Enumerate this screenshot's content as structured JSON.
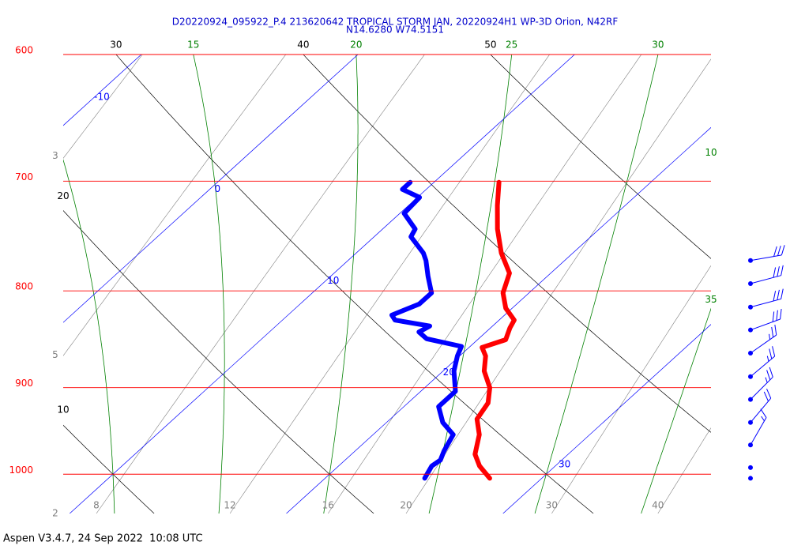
{
  "chart_data": {
    "type": "skewt",
    "title": "D20220924_095922_P.4 213620642 TROPICAL STORM JAN, 20220924H1 WP-3D Orion, N42RF",
    "subtitle": "N14.6280 W74.5151",
    "caption": "Aspen V3.4.7, 24 Sep 2022  10:08 UTC",
    "ylim": [
      1049,
      600
    ],
    "ylog": true,
    "xlim": [
      9.7,
      39.6
    ],
    "isobars": [
      600,
      700,
      800,
      900,
      1000
    ],
    "isotherms": [
      -10,
      0,
      10,
      20,
      30
    ],
    "dry_adiabats": [
      10,
      20,
      30,
      40,
      50
    ],
    "moist_adiabats": [
      10,
      15,
      20,
      25,
      30,
      35
    ],
    "mixing_ratios": [
      2,
      3,
      5,
      8,
      12,
      16,
      20,
      30,
      40
    ],
    "colors": {
      "title": "#0000cc",
      "isobars": "#ff0000",
      "isotherms": "#0000ff",
      "dry_adiabats": "#000000",
      "moist_adiabats": "#008000",
      "mixing_ratios": "#808080"
    },
    "series": [
      {
        "color": "#ff0000",
        "pressure": [
          1005,
          990,
          976,
          953,
          935,
          917,
          900,
          882,
          866,
          857,
          849,
          837,
          829,
          817,
          802,
          783,
          764,
          742,
          721,
          701
        ],
        "values": [
          27.6,
          26.5,
          25.7,
          24.9,
          24.0,
          23.7,
          23.0,
          21.9,
          21.2,
          20.6,
          21.3,
          20.9,
          20.7,
          19.7,
          18.8,
          18.1,
          16.7,
          15.3,
          14.1,
          13.0
        ]
      },
      {
        "color": "#0000ff",
        "pressure": [
          1005,
          990,
          983,
          972,
          953,
          939,
          921,
          904,
          882,
          866,
          856,
          848,
          841,
          835,
          829,
          824,
          813,
          802,
          786,
          771,
          764,
          749,
          742,
          728,
          714,
          707,
          701
        ],
        "values": [
          24.6,
          24.3,
          24.4,
          24.1,
          23.7,
          22.6,
          21.6,
          21.6,
          20.5,
          19.9,
          19.6,
          17.6,
          16.9,
          17.1,
          15.2,
          14.8,
          15.5,
          15.5,
          14.5,
          13.6,
          13.1,
          11.7,
          11.5,
          10.2,
          10.1,
          8.9,
          8.9
        ]
      }
    ],
    "wind": {
      "color": "#0000ff",
      "pressure": [
        771,
        793,
        816,
        839,
        863,
        888,
        913,
        939,
        965,
        992,
        1005
      ],
      "direction": [
        80,
        75,
        75,
        70,
        55,
        50,
        45,
        40,
        30,
        0,
        0
      ],
      "speed": [
        30,
        30,
        30,
        30,
        25,
        25,
        25,
        20,
        15,
        0,
        0
      ]
    }
  }
}
